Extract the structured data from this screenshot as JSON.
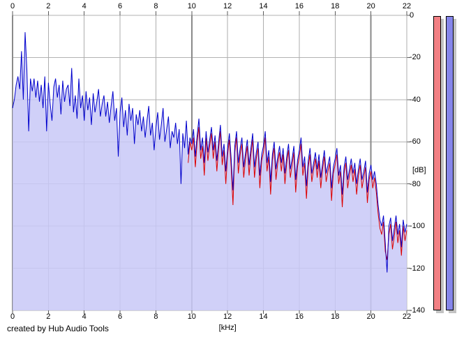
{
  "credit": "created by Hub Audio Tools",
  "chart_data": {
    "type": "line",
    "title": "",
    "xlabel": "[kHz]",
    "ylabel": "[dB]",
    "xlim": [
      0,
      22
    ],
    "ylim": [
      -140,
      0
    ],
    "grid": true,
    "x_ticks": [
      0,
      2,
      4,
      6,
      8,
      10,
      12,
      14,
      16,
      18,
      20,
      22
    ],
    "x_tick_labels": [
      "0",
      "2",
      "4",
      "6",
      "8",
      "10",
      "12",
      "14",
      "16",
      "18",
      "20",
      "22"
    ],
    "x_major_ticks": [
      0,
      10,
      20
    ],
    "y_ticks": [
      0,
      -20,
      -40,
      -60,
      -80,
      -100,
      -120,
      -140
    ],
    "y_tick_labels": [
      "0",
      "-20",
      "-40",
      "-60",
      "-80",
      "-100",
      "-120",
      "-140"
    ],
    "legend_position": "none",
    "series": [
      {
        "name": "red-trace",
        "color": "#dd0000",
        "x_start": 9.8,
        "x_step": 0.1,
        "fill": null,
        "values": [
          -70,
          -60,
          -64,
          -58,
          -72,
          -60,
          -53,
          -68,
          -62,
          -76,
          -58,
          -69,
          -62,
          -56,
          -68,
          -60,
          -74,
          -63,
          -55,
          -71,
          -64,
          -80,
          -66,
          -59,
          -72,
          -90,
          -65,
          -58,
          -75,
          -66,
          -61,
          -77,
          -68,
          -62,
          -76,
          -66,
          -59,
          -77,
          -68,
          -63,
          -82,
          -69,
          -65,
          -58,
          -74,
          -67,
          -85,
          -69,
          -63,
          -78,
          -70,
          -65,
          -74,
          -66,
          -80,
          -70,
          -64,
          -77,
          -71,
          -65,
          -84,
          -72,
          -67,
          -61,
          -76,
          -70,
          -87,
          -72,
          -66,
          -79,
          -73,
          -68,
          -77,
          -69,
          -82,
          -73,
          -67,
          -79,
          -74,
          -70,
          -88,
          -75,
          -71,
          -66,
          -80,
          -74,
          -91,
          -75,
          -70,
          -82,
          -76,
          -71,
          -79,
          -73,
          -85,
          -76,
          -71,
          -82,
          -77,
          -72,
          -89,
          -78,
          -74,
          -82,
          -77,
          -84,
          -94,
          -101,
          -104,
          -98,
          -112,
          -116,
          -104,
          -99,
          -111,
          -105,
          -98,
          -108,
          -102,
          -114,
          -100,
          -107,
          -102
        ]
      },
      {
        "name": "blue-trace",
        "color": "#0000cc",
        "x_start": 0,
        "x_step": 0.1,
        "fill": "rgba(200,200,247,0.85)",
        "values": [
          -44,
          -40,
          -33,
          -29,
          -35,
          -17,
          -40,
          -8,
          -26,
          -55,
          -30,
          -36,
          -30,
          -39,
          -31,
          -41,
          -33,
          -44,
          -29,
          -55,
          -32,
          -42,
          -50,
          -34,
          -30,
          -39,
          -33,
          -47,
          -31,
          -41,
          -35,
          -33,
          -43,
          -25,
          -46,
          -38,
          -49,
          -30,
          -44,
          -38,
          -50,
          -36,
          -45,
          -39,
          -52,
          -37,
          -46,
          -41,
          -35,
          -48,
          -42,
          -38,
          -48,
          -41,
          -51,
          -43,
          -36,
          -50,
          -44,
          -67,
          -46,
          -39,
          -53,
          -45,
          -57,
          -42,
          -50,
          -44,
          -61,
          -47,
          -52,
          -45,
          -55,
          -48,
          -58,
          -50,
          -43,
          -57,
          -51,
          -64,
          -53,
          -46,
          -59,
          -52,
          -44,
          -60,
          -54,
          -48,
          -63,
          -55,
          -58,
          -51,
          -61,
          -54,
          -80,
          -56,
          -63,
          -50,
          -66,
          -58,
          -61,
          -54,
          -67,
          -57,
          -49,
          -64,
          -58,
          -70,
          -55,
          -65,
          -59,
          -53,
          -64,
          -57,
          -69,
          -60,
          -52,
          -67,
          -61,
          -74,
          -63,
          -56,
          -68,
          -83,
          -62,
          -55,
          -70,
          -63,
          -58,
          -72,
          -65,
          -59,
          -71,
          -63,
          -56,
          -72,
          -65,
          -60,
          -76,
          -66,
          -62,
          -55,
          -70,
          -64,
          -79,
          -66,
          -60,
          -73,
          -67,
          -62,
          -70,
          -63,
          -75,
          -67,
          -61,
          -73,
          -68,
          -62,
          -78,
          -69,
          -64,
          -58,
          -72,
          -67,
          -81,
          -69,
          -63,
          -75,
          -70,
          -65,
          -73,
          -66,
          -77,
          -70,
          -64,
          -75,
          -71,
          -67,
          -82,
          -72,
          -68,
          -63,
          -76,
          -71,
          -85,
          -72,
          -67,
          -78,
          -73,
          -68,
          -75,
          -70,
          -80,
          -73,
          -68,
          -78,
          -74,
          -69,
          -84,
          -75,
          -71,
          -78,
          -74,
          -80,
          -90,
          -97,
          -100,
          -95,
          -108,
          -122,
          -100,
          -96,
          -107,
          -101,
          -95,
          -104,
          -99,
          -110,
          -97,
          -103,
          -99
        ]
      }
    ]
  },
  "meters": {
    "left_meter": {
      "name": "level-meter-red",
      "color": "#f28084"
    },
    "right_meter": {
      "name": "level-meter-blue",
      "color": "#8686ea"
    }
  },
  "colors": {
    "grid_minor": "#aeaeae",
    "grid_major": "#8a8a8a",
    "grid_horizontal": "#b2b2b2",
    "tick": "#5a5a5a",
    "meter_shadow": "#c3c3c3"
  }
}
